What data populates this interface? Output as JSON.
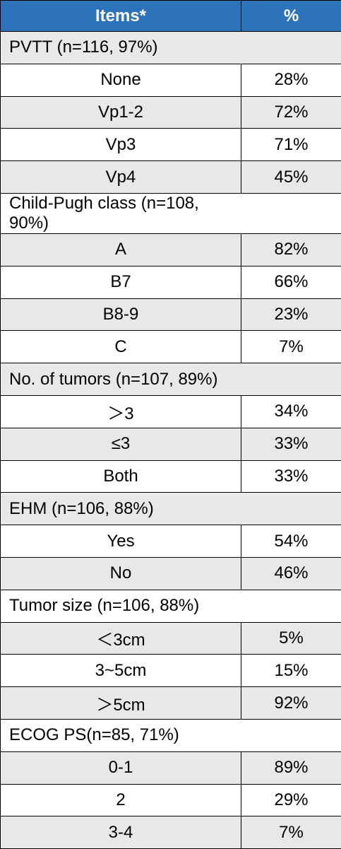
{
  "header": {
    "items": "Items*",
    "percent": "%"
  },
  "sections": [
    {
      "label": "PVTT (n=116, 97%)",
      "rows": [
        {
          "item": "None",
          "value": "28%"
        },
        {
          "item": "Vp1-2",
          "value": "72%"
        },
        {
          "item": "Vp3",
          "value": "71%"
        },
        {
          "item": "Vp4",
          "value": "45%"
        }
      ]
    },
    {
      "label": "Child-Pugh class (n=108, 90%)",
      "rows": [
        {
          "item": "A",
          "value": "82%"
        },
        {
          "item": "B7",
          "value": "66%"
        },
        {
          "item": "B8-9",
          "value": "23%"
        },
        {
          "item": "C",
          "value": "7%"
        }
      ]
    },
    {
      "label": "No. of tumors (n=107, 89%)",
      "rows": [
        {
          "item": "＞3",
          "value": "34%"
        },
        {
          "item": "≤3",
          "value": "33%"
        },
        {
          "item": "Both",
          "value": "33%"
        }
      ]
    },
    {
      "label": "EHM (n=106, 88%)",
      "rows": [
        {
          "item": "Yes",
          "value": "54%"
        },
        {
          "item": "No",
          "value": "46%"
        }
      ]
    },
    {
      "label": "Tumor size (n=106, 88%)",
      "rows": [
        {
          "item": "＜3cm",
          "value": "5%"
        },
        {
          "item": "3~5cm",
          "value": "15%"
        },
        {
          "item": "＞5cm",
          "value": "92%"
        }
      ]
    },
    {
      "label": "ECOG PS(n=85, 71%)",
      "rows": [
        {
          "item": "0-1",
          "value": "89%"
        },
        {
          "item": "2",
          "value": "29%"
        },
        {
          "item": "3-4",
          "value": "7%"
        }
      ]
    }
  ]
}
